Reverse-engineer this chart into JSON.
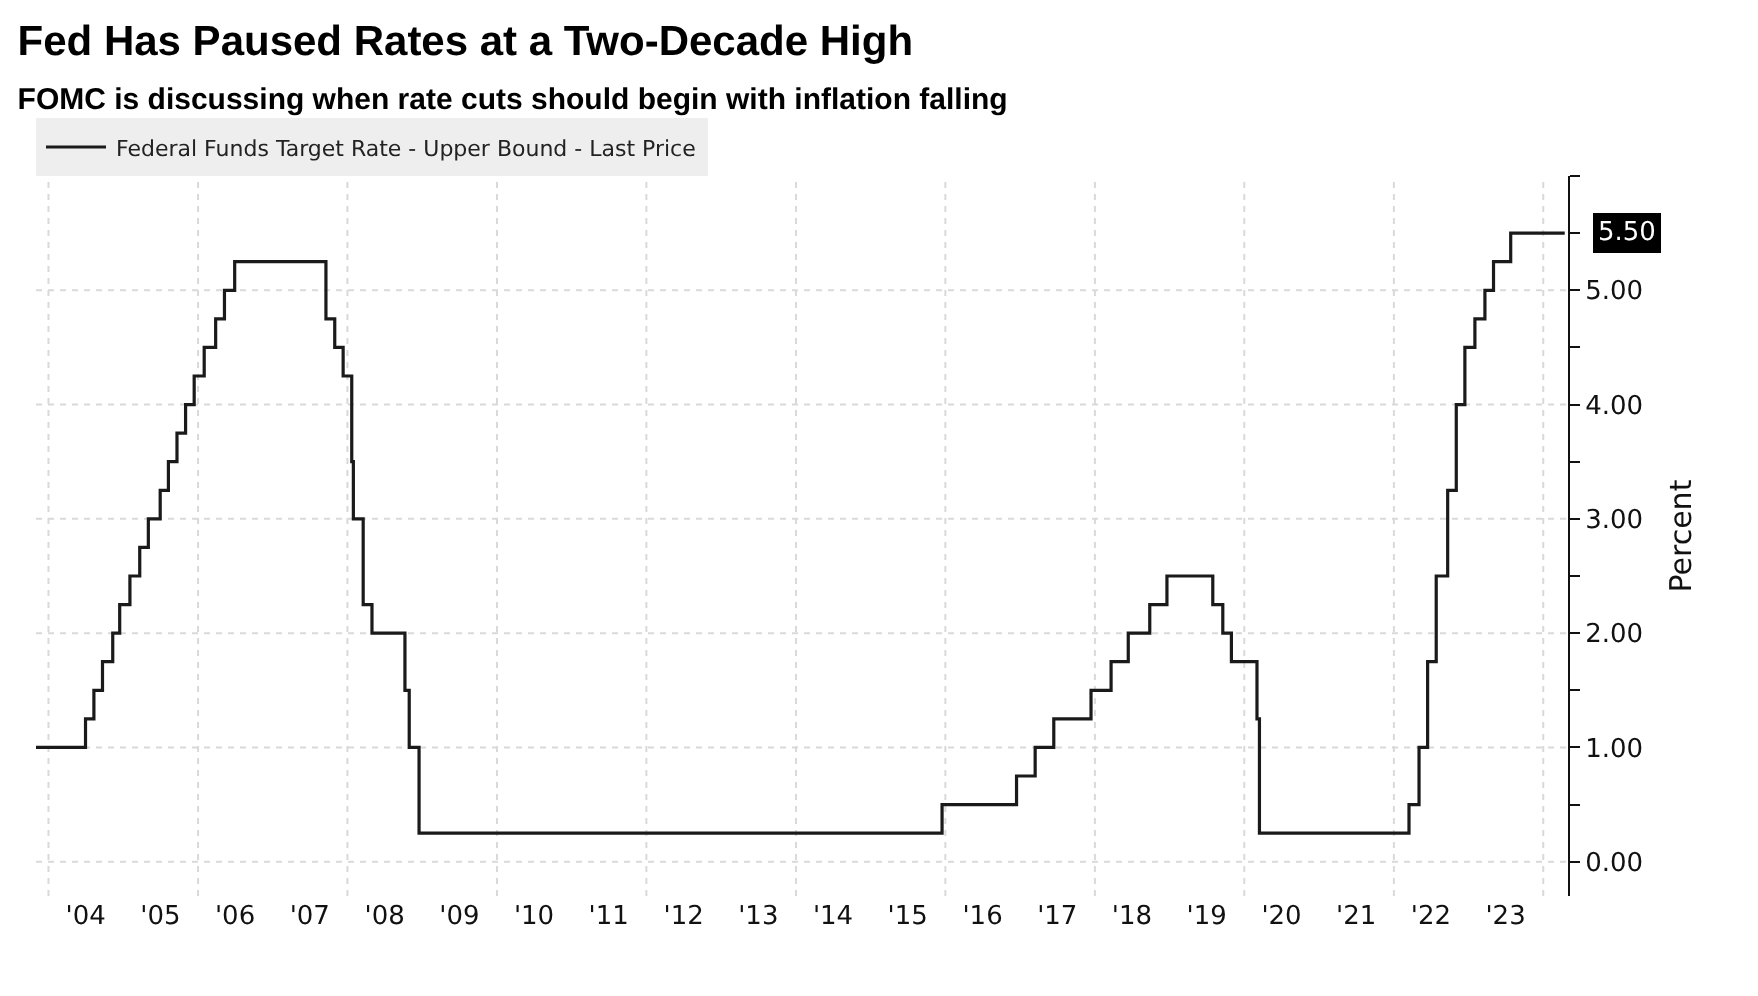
{
  "chart_data": {
    "type": "step",
    "title": "Fed Has Paused Rates at a Two-Decade High",
    "subtitle": "FOMC is discussing when rate cuts should begin with inflation falling",
    "ylabel": "Percent",
    "x": [
      "2003-11-01",
      "2004-06-30",
      "2004-08-10",
      "2004-09-21",
      "2004-11-10",
      "2004-12-14",
      "2005-02-02",
      "2005-03-22",
      "2005-05-03",
      "2005-06-30",
      "2005-08-09",
      "2005-09-20",
      "2005-11-01",
      "2005-12-13",
      "2006-01-31",
      "2006-03-28",
      "2006-05-10",
      "2006-06-29",
      "2007-09-18",
      "2007-10-31",
      "2007-12-11",
      "2008-01-22",
      "2008-01-30",
      "2008-03-18",
      "2008-04-30",
      "2008-10-08",
      "2008-10-29",
      "2008-12-16",
      "2015-12-16",
      "2016-12-14",
      "2017-03-15",
      "2017-06-14",
      "2017-12-13",
      "2018-03-21",
      "2018-06-13",
      "2018-09-26",
      "2018-12-19",
      "2019-07-31",
      "2019-09-18",
      "2019-10-30",
      "2020-03-03",
      "2020-03-15",
      "2022-03-16",
      "2022-05-04",
      "2022-06-15",
      "2022-07-27",
      "2022-09-21",
      "2022-11-02",
      "2022-12-14",
      "2023-02-01",
      "2023-03-22",
      "2023-05-03",
      "2023-07-26",
      "2024-04-15"
    ],
    "series": [
      {
        "name": "Federal Funds Target Rate - Upper Bound - Last Price",
        "color": "#1a1a1a",
        "values": [
          1.0,
          1.25,
          1.5,
          1.75,
          2.0,
          2.25,
          2.5,
          2.75,
          3.0,
          3.25,
          3.5,
          3.75,
          4.0,
          4.25,
          4.5,
          4.75,
          5.0,
          5.25,
          4.75,
          4.5,
          4.25,
          3.5,
          3.0,
          2.25,
          2.0,
          1.5,
          1.0,
          0.25,
          0.5,
          0.75,
          1.0,
          1.25,
          1.5,
          1.75,
          2.0,
          2.25,
          2.5,
          2.25,
          2.0,
          1.75,
          1.25,
          0.25,
          0.5,
          1.0,
          1.75,
          2.5,
          3.25,
          4.0,
          4.5,
          4.75,
          5.0,
          5.25,
          5.5,
          5.5
        ]
      }
    ],
    "annotations": [
      {
        "text": "5.50",
        "x": "2024-04-15",
        "y": 5.5
      }
    ],
    "xlim": [
      "2003-11-01",
      "2024-05-01"
    ],
    "xticks": [
      {
        "value": "2004-01-01",
        "label": null
      },
      {
        "value": "2006-01-01",
        "label": null
      },
      {
        "value": "2008-01-01",
        "label": null
      },
      {
        "value": "2010-01-01",
        "label": null
      },
      {
        "value": "2012-01-01",
        "label": null
      },
      {
        "value": "2014-01-01",
        "label": null
      },
      {
        "value": "2016-01-01",
        "label": null
      },
      {
        "value": "2018-01-01",
        "label": null
      },
      {
        "value": "2020-01-01",
        "label": null
      },
      {
        "value": "2022-01-01",
        "label": null
      },
      {
        "value": "2024-01-01",
        "label": null
      },
      {
        "value": "2004-07-01",
        "label": "'04"
      },
      {
        "value": "2005-07-01",
        "label": "'05"
      },
      {
        "value": "2006-07-01",
        "label": "'06"
      },
      {
        "value": "2007-07-01",
        "label": "'07"
      },
      {
        "value": "2008-07-01",
        "label": "'08"
      },
      {
        "value": "2009-07-01",
        "label": "'09"
      },
      {
        "value": "2010-07-01",
        "label": "'10"
      },
      {
        "value": "2011-07-01",
        "label": "'11"
      },
      {
        "value": "2012-07-01",
        "label": "'12"
      },
      {
        "value": "2013-07-01",
        "label": "'13"
      },
      {
        "value": "2014-07-01",
        "label": "'14"
      },
      {
        "value": "2015-07-01",
        "label": "'15"
      },
      {
        "value": "2016-07-01",
        "label": "'16"
      },
      {
        "value": "2017-07-01",
        "label": "'17"
      },
      {
        "value": "2018-07-01",
        "label": "'18"
      },
      {
        "value": "2019-07-01",
        "label": "'19"
      },
      {
        "value": "2020-07-01",
        "label": "'20"
      },
      {
        "value": "2021-07-01",
        "label": "'21"
      },
      {
        "value": "2022-07-01",
        "label": "'22"
      },
      {
        "value": "2023-07-01",
        "label": "'23"
      }
    ],
    "ylim": [
      -0.3,
      6.0
    ],
    "yticks": [
      {
        "value": 0,
        "label": "0.00"
      },
      {
        "value": 0.5,
        "label": null
      },
      {
        "value": 1,
        "label": "1.00"
      },
      {
        "value": 1.5,
        "label": null
      },
      {
        "value": 2,
        "label": "2.00"
      },
      {
        "value": 2.5,
        "label": null
      },
      {
        "value": 3,
        "label": "3.00"
      },
      {
        "value": 3.5,
        "label": null
      },
      {
        "value": 4,
        "label": "4.00"
      },
      {
        "value": 4.5,
        "label": null
      },
      {
        "value": 5,
        "label": "5.00"
      },
      {
        "value": 5.5,
        "label": null
      },
      {
        "value": 6,
        "label": null
      }
    ],
    "grid": true,
    "legend": "top left",
    "line_style": "solid",
    "marker": "none"
  }
}
